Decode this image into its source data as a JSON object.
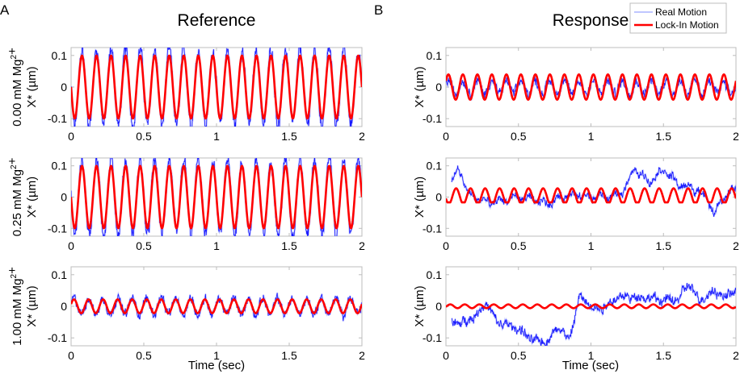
{
  "chart_data": {
    "type": "line",
    "panel_letters": [
      "A",
      "B"
    ],
    "column_titles": [
      "Reference",
      "Response"
    ],
    "legend": {
      "placement": "top-right",
      "entries": [
        {
          "label": "Real Motion",
          "color": "#aab4ff"
        },
        {
          "label": "Lock-In Motion",
          "color": "#ff0000"
        }
      ]
    },
    "colors": {
      "real": "#1a1aff",
      "lockin": "#ff0000",
      "axis": "#bcbcbc"
    },
    "xlabel": "Time (sec)",
    "xlim": [
      0,
      2
    ],
    "ylim": [
      -0.125,
      0.125
    ],
    "xticks": [
      0,
      0.5,
      1,
      1.5,
      2
    ],
    "xtick_labels": [
      "0",
      "0.5",
      "1",
      "1.5",
      "2"
    ],
    "yticks": [
      -0.1,
      0,
      0.1
    ],
    "ytick_labels": [
      "-0.1",
      "0",
      "0.1"
    ],
    "row_labels": [
      {
        "conc": "0.00 mM Mg",
        "sup": "2",
        "plus": "+",
        "unit": "X* (µm)"
      },
      {
        "conc": "0.25 mM Mg",
        "sup": "2",
        "plus": "+",
        "unit": "X* (µm)"
      },
      {
        "conc": "1.00 mM Mg",
        "sup": "2",
        "plus": "+",
        "unit": "X* (µm)"
      }
    ],
    "right_ylabel": "X* (µm)",
    "frequency_hz": 10,
    "panels": [
      {
        "id": "ref-0.00",
        "column": 0,
        "row": 0,
        "lockin": {
          "amplitude": 0.1,
          "peak_time": 0.075,
          "offset": 0,
          "shape": "sine"
        },
        "real": {
          "amplitude": 0.12,
          "noise": 0.02,
          "drift": []
        }
      },
      {
        "id": "ref-0.25",
        "column": 0,
        "row": 1,
        "lockin": {
          "amplitude": 0.1,
          "peak_time": 0.075,
          "offset": 0,
          "shape": "sine"
        },
        "real": {
          "amplitude": 0.12,
          "noise": 0.02,
          "drift": []
        }
      },
      {
        "id": "ref-1.00",
        "column": 0,
        "row": 2,
        "lockin": {
          "amplitude": 0.022,
          "peak_time": 0.02,
          "offset": 0,
          "shape": "sine"
        },
        "real": {
          "amplitude": 0.025,
          "noise": 0.012,
          "drift": []
        }
      },
      {
        "id": "resp-0.00",
        "column": 1,
        "row": 0,
        "lockin": {
          "amplitude": 0.04,
          "peak_time": 0.017,
          "offset": 0,
          "shape": "sine"
        },
        "real": {
          "amplitude": 0.02,
          "noise": 0.012,
          "drift": [
            [
              0,
              0
            ],
            [
              2,
              0
            ]
          ]
        }
      },
      {
        "id": "resp-0.25",
        "column": 1,
        "row": 1,
        "lockin": {
          "amplitude": 0.025,
          "peak_time": 0.07,
          "offset": 0.003,
          "shape": "clipped"
        },
        "real": {
          "amplitude": 0.008,
          "noise": 0.01,
          "drift": [
            [
              0.04,
              0.05
            ],
            [
              0.08,
              0.085
            ],
            [
              0.12,
              0.06
            ],
            [
              0.15,
              0.01
            ],
            [
              0.3,
              -0.02
            ],
            [
              0.5,
              0.0
            ],
            [
              0.7,
              -0.02
            ],
            [
              0.85,
              0.01
            ],
            [
              1.0,
              0.0
            ],
            [
              1.2,
              0.005
            ],
            [
              1.3,
              0.09
            ],
            [
              1.4,
              0.05
            ],
            [
              1.5,
              0.09
            ],
            [
              1.6,
              0.04
            ],
            [
              1.7,
              0.03
            ],
            [
              1.8,
              0.0
            ],
            [
              1.85,
              -0.055
            ],
            [
              1.92,
              0.0
            ],
            [
              2.0,
              0.03
            ]
          ]
        }
      },
      {
        "id": "resp-1.00",
        "column": 1,
        "row": 2,
        "lockin": {
          "amplitude": 0.006,
          "peak_time": 0.03,
          "offset": 0,
          "shape": "sine"
        },
        "real": {
          "amplitude": 0.004,
          "noise": 0.012,
          "drift": [
            [
              0.04,
              -0.05
            ],
            [
              0.1,
              -0.055
            ],
            [
              0.2,
              -0.03
            ],
            [
              0.28,
              0.01
            ],
            [
              0.35,
              -0.05
            ],
            [
              0.5,
              -0.07
            ],
            [
              0.6,
              -0.11
            ],
            [
              0.7,
              -0.11
            ],
            [
              0.78,
              -0.06
            ],
            [
              0.85,
              -0.11
            ],
            [
              0.92,
              0.03
            ],
            [
              0.98,
              0.01
            ],
            [
              1.05,
              -0.01
            ],
            [
              1.2,
              0.03
            ],
            [
              1.35,
              0.03
            ],
            [
              1.5,
              0.02
            ],
            [
              1.6,
              0.02
            ],
            [
              1.67,
              0.07
            ],
            [
              1.75,
              0.02
            ],
            [
              1.85,
              0.05
            ],
            [
              1.92,
              0.03
            ],
            [
              2.0,
              0.05
            ]
          ]
        }
      }
    ]
  }
}
